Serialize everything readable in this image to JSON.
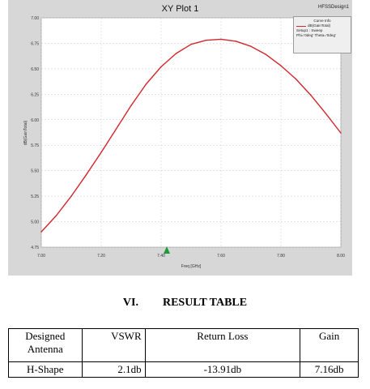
{
  "plot": {
    "title": "XY Plot 1",
    "project": "HFSSDesign1",
    "legend": {
      "header": "Curve Info",
      "trace": "dB(GainTotal)",
      "line2": "Setup1 : Sweep",
      "line3": "Phi='0deg' Theta='0deg'"
    }
  },
  "chart_data": {
    "type": "line",
    "title": "XY Plot 1",
    "xlabel": "Freq [GHz]",
    "ylabel": "dB(GainTotal)",
    "xlim": [
      7.0,
      8.0
    ],
    "ylim": [
      4.75,
      7.0
    ],
    "x_ticks": [
      "7.00",
      "7.20",
      "7.40",
      "7.60",
      "7.80",
      "8.00"
    ],
    "y_ticks": [
      "4.75",
      "5.00",
      "5.25",
      "5.50",
      "5.75",
      "6.00",
      "6.25",
      "6.50",
      "6.75",
      "7.00"
    ],
    "grid": true,
    "legend_position": "top-right",
    "series": [
      {
        "name": "dB(GainTotal)",
        "color": "#d1262d",
        "x": [
          7.0,
          7.05,
          7.1,
          7.15,
          7.2,
          7.25,
          7.3,
          7.35,
          7.4,
          7.45,
          7.5,
          7.55,
          7.6,
          7.65,
          7.7,
          7.75,
          7.8,
          7.85,
          7.9,
          7.95,
          8.0
        ],
        "y": [
          4.9,
          5.06,
          5.25,
          5.46,
          5.68,
          5.91,
          6.14,
          6.35,
          6.52,
          6.65,
          6.74,
          6.78,
          6.79,
          6.77,
          6.72,
          6.64,
          6.53,
          6.4,
          6.24,
          6.06,
          5.87
        ]
      }
    ]
  },
  "section": {
    "number": "VI.",
    "title": "RESULT TABLE"
  },
  "table": {
    "headers": [
      "Designed Antenna",
      "VSWR",
      "Return Loss",
      "Gain"
    ],
    "rows": [
      [
        "H-Shape",
        "2.1db",
        "-13.91db",
        "7.16db"
      ]
    ]
  }
}
